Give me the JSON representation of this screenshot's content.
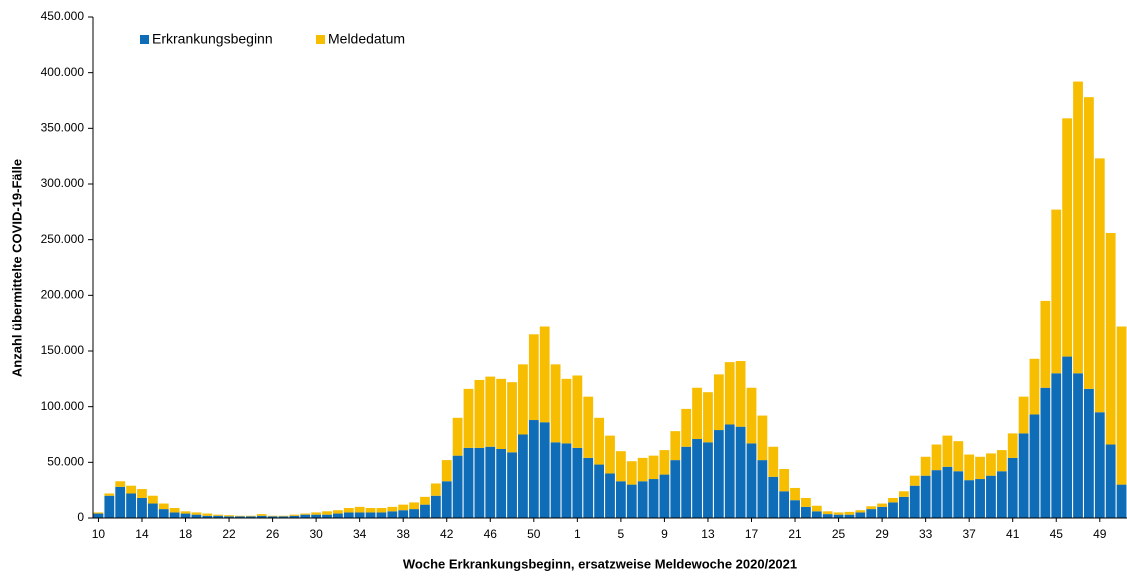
{
  "chart_data": {
    "type": "stacked-bar",
    "y_label": "Anzahl übermittelte COVID-19-Fälle",
    "x_label": "Woche Erkrankungsbeginn,  ersatzweise Meldewoche 2020/2021",
    "categories": [
      "10",
      null,
      null,
      null,
      "14",
      null,
      null,
      null,
      "18",
      null,
      null,
      null,
      "22",
      null,
      null,
      null,
      "26",
      null,
      null,
      null,
      "30",
      null,
      null,
      null,
      "34",
      null,
      null,
      null,
      "38",
      null,
      null,
      null,
      "42",
      null,
      null,
      null,
      "46",
      null,
      null,
      null,
      "50",
      null,
      null,
      null,
      "1",
      null,
      null,
      null,
      "5",
      null,
      null,
      null,
      "9",
      null,
      null,
      null,
      "13",
      null,
      null,
      null,
      "17",
      null,
      null,
      null,
      "21",
      null,
      null,
      null,
      "25",
      null,
      null,
      null,
      "29",
      null,
      null,
      null,
      "33",
      null,
      null,
      null,
      "37",
      null,
      null,
      null,
      "41",
      null,
      null,
      null,
      "45",
      null,
      null,
      null,
      "49",
      null,
      null
    ],
    "series": [
      {
        "name": "Erkrankungsbeginn",
        "color": "#0f6cb6",
        "values": [
          4000,
          20000,
          28000,
          22000,
          18000,
          13000,
          8000,
          5000,
          4000,
          3000,
          2000,
          2000,
          1500,
          1500,
          1500,
          2000,
          1500,
          1500,
          2000,
          3000,
          3000,
          3000,
          4000,
          5000,
          5000,
          5000,
          5000,
          6000,
          7000,
          8000,
          12000,
          20000,
          33000,
          56000,
          63000,
          63000,
          64000,
          62000,
          59000,
          75000,
          88000,
          86000,
          68000,
          67000,
          63000,
          54000,
          48000,
          40000,
          33000,
          30000,
          33000,
          35000,
          39000,
          52000,
          64000,
          71000,
          68000,
          79000,
          84000,
          82000,
          67000,
          52000,
          37000,
          24000,
          16000,
          10000,
          6000,
          3500,
          3000,
          3000,
          5000,
          8000,
          10000,
          14000,
          19000,
          29000,
          38000,
          43000,
          46000,
          42000,
          34000,
          35000,
          38000,
          42000,
          54000,
          76000,
          93000,
          117000,
          130000,
          145000,
          130000,
          116000,
          95000,
          66000,
          30000
        ]
      },
      {
        "name": "Meldedatum",
        "color": "#f7bd00",
        "values": [
          1000,
          2000,
          5000,
          7000,
          8000,
          7000,
          5000,
          4000,
          2000,
          2000,
          2000,
          1000,
          1000,
          500,
          500,
          1500,
          500,
          500,
          1000,
          1000,
          2000,
          3000,
          3000,
          4000,
          5000,
          4000,
          4000,
          4000,
          5000,
          6000,
          7000,
          11000,
          19000,
          34000,
          53000,
          61000,
          63000,
          63000,
          63000,
          63000,
          77000,
          86000,
          70000,
          58000,
          65000,
          55000,
          42000,
          34000,
          27000,
          21000,
          21000,
          21000,
          22000,
          26000,
          34000,
          46000,
          45000,
          50000,
          56000,
          59000,
          50000,
          40000,
          27000,
          20000,
          11000,
          8000,
          5000,
          2500,
          2000,
          2500,
          2000,
          2500,
          3000,
          4000,
          5000,
          9000,
          17000,
          23000,
          28000,
          27000,
          23000,
          20000,
          20000,
          19000,
          22000,
          33000,
          50000,
          78000,
          147000,
          214000,
          262000,
          262000,
          228000,
          190000,
          142000
        ]
      }
    ],
    "ylim": [
      0,
      450000
    ],
    "yticks": [
      0,
      {
        "value": 50000,
        "label": "50.000"
      },
      {
        "value": 100000,
        "label": "100.000"
      },
      {
        "value": 150000,
        "label": "150.000"
      },
      {
        "value": 200000,
        "label": "200.000"
      },
      {
        "value": 250000,
        "label": "250.000"
      },
      {
        "value": 300000,
        "label": "300.000"
      },
      {
        "value": 350000,
        "label": "350.000"
      },
      {
        "value": 400000,
        "label": "400.000"
      },
      {
        "value": 450000,
        "label": "450.000"
      }
    ],
    "grid": false
  }
}
